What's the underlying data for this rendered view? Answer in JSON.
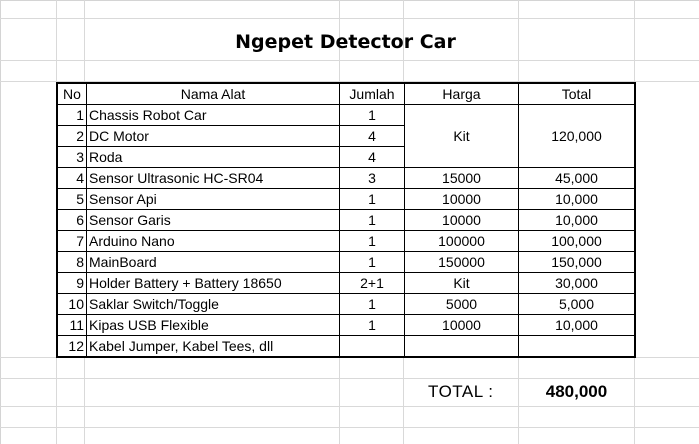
{
  "sheet": {
    "title": "Ngepet Detector Car",
    "headers": [
      "No",
      "Nama Alat",
      "Jumlah",
      "Harga",
      "Total"
    ],
    "rows": [
      {
        "no": "1",
        "name": "Chassis Robot Car",
        "qty": "1"
      },
      {
        "no": "2",
        "name": "DC Motor",
        "qty": "4"
      },
      {
        "no": "3",
        "name": "Roda",
        "qty": "4"
      },
      {
        "no": "4",
        "name": "Sensor Ultrasonic HC-SR04",
        "qty": "3",
        "price": "15000",
        "total": "45,000"
      },
      {
        "no": "5",
        "name": "Sensor Api",
        "qty": "1",
        "price": "10000",
        "total": "10,000"
      },
      {
        "no": "6",
        "name": "Sensor Garis",
        "qty": "1",
        "price": "10000",
        "total": "10,000"
      },
      {
        "no": "7",
        "name": "Arduino Nano",
        "qty": "1",
        "price": "100000",
        "total": "100,000"
      },
      {
        "no": "8",
        "name": "MainBoard",
        "qty": "1",
        "price": "150000",
        "total": "150,000"
      },
      {
        "no": "9",
        "name": "Holder Battery + Battery 18650",
        "qty": "2+1",
        "price": "Kit",
        "total": "30,000"
      },
      {
        "no": "10",
        "name": "Saklar Switch/Toggle",
        "qty": "1",
        "price": "5000",
        "total": "5,000"
      },
      {
        "no": "11",
        "name": "Kipas USB Flexible",
        "qty": "1",
        "price": "10000",
        "total": "10,000"
      },
      {
        "no": "12",
        "name": "Kabel Jumper, Kabel Tees, dll",
        "qty": "",
        "price": "",
        "total": ""
      }
    ],
    "merged_kit": {
      "price": "Kit",
      "total": "120,000"
    },
    "total_label": "TOTAL :",
    "total_value": "480,000"
  },
  "colors": {
    "grid_line": "#d9d9d9",
    "border": "#000000",
    "background": "#ffffff"
  }
}
